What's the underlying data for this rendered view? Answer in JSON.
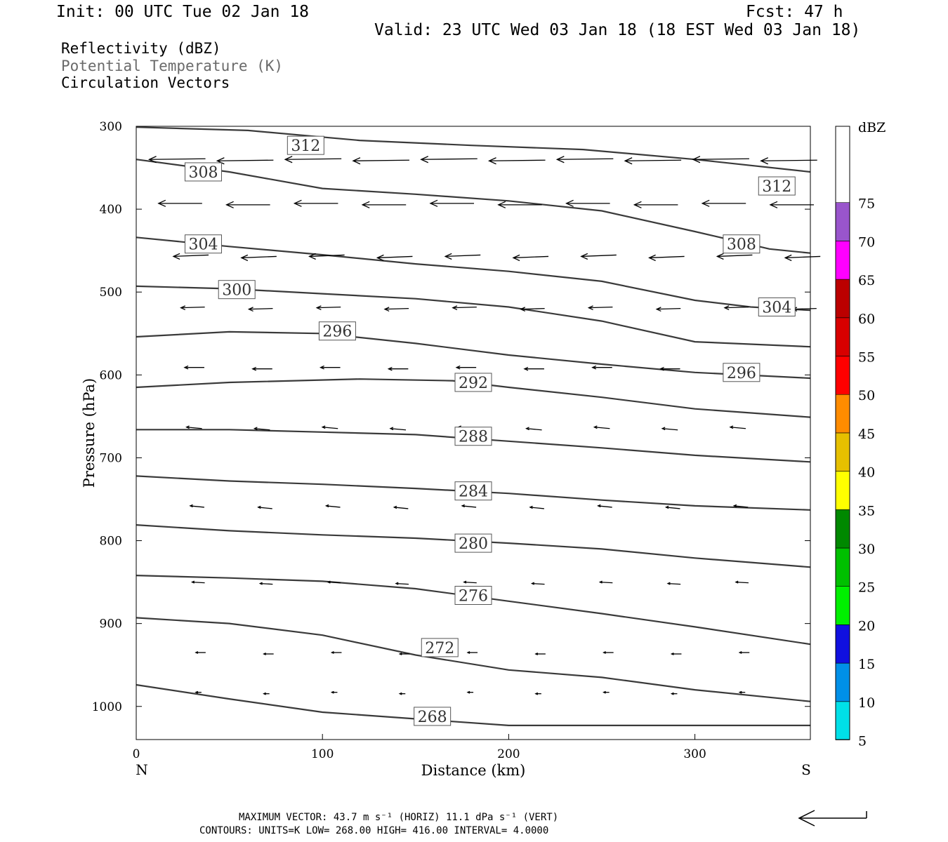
{
  "header": {
    "init": "Init: 00 UTC Tue 02 Jan 18",
    "fcst": "Fcst:   47 h",
    "valid": "Valid: 23 UTC Wed 03 Jan 18 (18 EST Wed 03 Jan 18)",
    "fields": [
      "Reflectivity (dBZ)",
      "Potential Temperature (K)",
      "Circulation Vectors"
    ]
  },
  "footer": {
    "line1": "MAXIMUM VECTOR:  43.7 m s⁻¹ (HORIZ)        11.1 dPa s⁻¹ (VERT)",
    "line2": "CONTOURS:  UNITS=K  LOW=  268.00        HIGH=  416.00        INTERVAL=     4.0000"
  },
  "chart_data": {
    "type": "cross-section contour",
    "xlabel": "Distance (km)",
    "ylabel": "Pressure (hPa)",
    "xlim": [
      0,
      362
    ],
    "ylim": [
      1040,
      300
    ],
    "x_ticks": [
      0,
      100,
      200,
      300
    ],
    "y_ticks": [
      300,
      400,
      500,
      600,
      700,
      800,
      900,
      1000
    ],
    "x_end_labels": {
      "left": "N",
      "right": "S"
    },
    "contour_levels": [
      {
        "theta": 312,
        "x": [
          0,
          60,
          120,
          180,
          240,
          300,
          362
        ],
        "p": [
          301,
          305,
          317,
          323,
          328,
          340,
          355
        ]
      },
      {
        "theta": 308,
        "x": [
          0,
          50,
          100,
          150,
          200,
          250,
          300,
          340,
          362
        ],
        "p": [
          340,
          355,
          375,
          382,
          390,
          402,
          427,
          448,
          453
        ]
      },
      {
        "theta": 304,
        "x": [
          0,
          50,
          100,
          150,
          200,
          250,
          300,
          330,
          362
        ],
        "p": [
          434,
          445,
          455,
          466,
          475,
          487,
          510,
          518,
          522
        ]
      },
      {
        "theta": 300,
        "x": [
          0,
          50,
          100,
          150,
          200,
          250,
          300,
          362
        ],
        "p": [
          493,
          496,
          502,
          508,
          518,
          535,
          560,
          566
        ]
      },
      {
        "theta": 296,
        "x": [
          0,
          50,
          100,
          150,
          200,
          250,
          300,
          362
        ],
        "p": [
          554,
          548,
          550,
          562,
          576,
          587,
          597,
          604
        ]
      },
      {
        "theta": 292,
        "x": [
          0,
          50,
          120,
          170,
          200,
          250,
          300,
          362
        ],
        "p": [
          615,
          609,
          605,
          607,
          615,
          627,
          641,
          651
        ]
      },
      {
        "theta": 288,
        "x": [
          0,
          50,
          100,
          150,
          200,
          250,
          300,
          362
        ],
        "p": [
          666,
          666,
          669,
          672,
          680,
          688,
          697,
          705
        ]
      },
      {
        "theta": 284,
        "x": [
          0,
          50,
          100,
          150,
          200,
          250,
          300,
          362
        ],
        "p": [
          722,
          728,
          732,
          737,
          743,
          751,
          758,
          763
        ]
      },
      {
        "theta": 280,
        "x": [
          0,
          50,
          100,
          150,
          200,
          250,
          300,
          362
        ],
        "p": [
          781,
          788,
          793,
          797,
          803,
          810,
          821,
          832
        ]
      },
      {
        "theta": 276,
        "x": [
          0,
          50,
          100,
          150,
          200,
          250,
          300,
          362
        ],
        "p": [
          842,
          845,
          849,
          858,
          873,
          888,
          904,
          925
        ]
      },
      {
        "theta": 272,
        "x": [
          0,
          50,
          100,
          150,
          200,
          250,
          300,
          362
        ],
        "p": [
          893,
          900,
          914,
          938,
          956,
          965,
          980,
          994
        ]
      },
      {
        "theta": 268,
        "x": [
          0,
          50,
          100,
          150,
          200,
          250,
          300,
          362
        ],
        "p": [
          974,
          991,
          1007,
          1015,
          1023,
          1023,
          1023,
          1023
        ]
      }
    ],
    "contour_labels": [
      {
        "text": "312",
        "x": 91,
        "p": 323
      },
      {
        "text": "308",
        "x": 36,
        "p": 355
      },
      {
        "text": "312",
        "x": 344,
        "p": 372
      },
      {
        "text": "304",
        "x": 36,
        "p": 442
      },
      {
        "text": "308",
        "x": 325,
        "p": 442
      },
      {
        "text": "300",
        "x": 54,
        "p": 497
      },
      {
        "text": "304",
        "x": 344,
        "p": 518
      },
      {
        "text": "296",
        "x": 108,
        "p": 547
      },
      {
        "text": "296",
        "x": 325,
        "p": 597
      },
      {
        "text": "292",
        "x": 181,
        "p": 609
      },
      {
        "text": "288",
        "x": 181,
        "p": 674
      },
      {
        "text": "284",
        "x": 181,
        "p": 740
      },
      {
        "text": "280",
        "x": 181,
        "p": 803
      },
      {
        "text": "276",
        "x": 181,
        "p": 866
      },
      {
        "text": "272",
        "x": 163,
        "p": 929
      },
      {
        "text": "268",
        "x": 159,
        "p": 1012
      }
    ],
    "legend": {
      "title": "dBZ",
      "levels": [
        5,
        10,
        15,
        20,
        25,
        30,
        35,
        40,
        45,
        50,
        55,
        60,
        65,
        70,
        75
      ],
      "colors": [
        "#00e0e8",
        "#0090e8",
        "#1010e0",
        "#00f000",
        "#00c000",
        "#008800",
        "#ffff00",
        "#e6c000",
        "#ff8c00",
        "#ff0000",
        "#d80000",
        "#bb0000",
        "#ff00ff",
        "#9955cc",
        "#ffffff"
      ]
    },
    "max_vector_horiz": 43.7,
    "max_vector_vert": 11.1
  }
}
